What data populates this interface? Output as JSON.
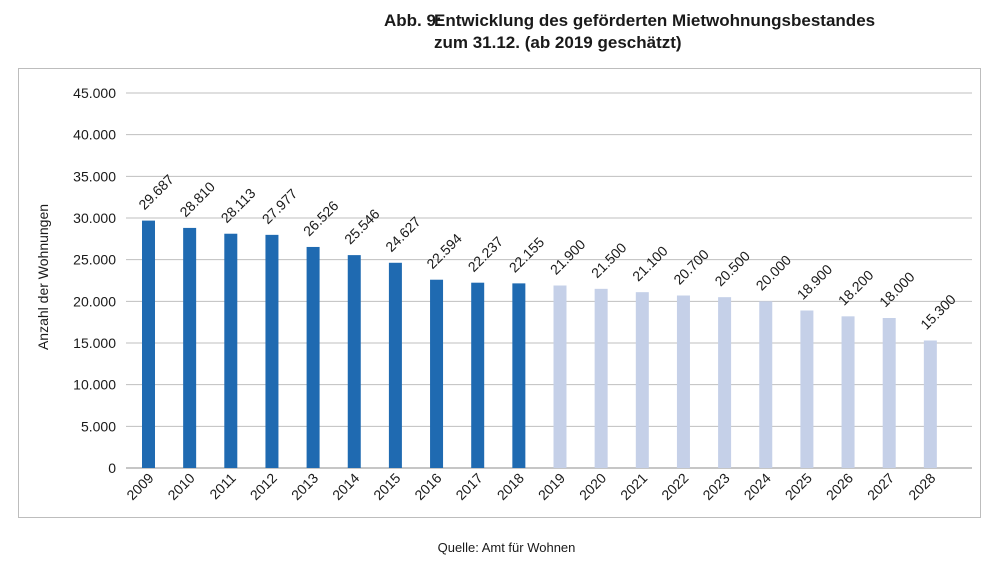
{
  "figure": {
    "label": "Abb. 9:",
    "title_line1": "Entwicklung des geförderten Mietwohnungsbestandes",
    "title_line2": "zum 31.12. (ab 2019 geschätzt)",
    "source": "Quelle: Amt für Wohnen"
  },
  "chart_data": {
    "type": "bar",
    "title": "Entwicklung des geförderten Mietwohnungsbestandes zum 31.12. (ab 2019 geschätzt)",
    "xlabel": "",
    "ylabel": "Anzahl der Wohnungen",
    "ylim": [
      0,
      45000
    ],
    "yticks": [
      0,
      5000,
      10000,
      15000,
      20000,
      25000,
      30000,
      35000,
      40000,
      45000
    ],
    "ytick_labels": [
      "0",
      "5.000",
      "10.000",
      "15.000",
      "20.000",
      "25.000",
      "30.000",
      "35.000",
      "40.000",
      "45.000"
    ],
    "grid": true,
    "legend": "none",
    "categories": [
      "2009",
      "2010",
      "2011",
      "2012",
      "2013",
      "2014",
      "2015",
      "2016",
      "2017",
      "2018",
      "2019",
      "2020",
      "2021",
      "2022",
      "2023",
      "2024",
      "2025",
      "2026",
      "2027",
      "2028"
    ],
    "values": [
      29687,
      28810,
      28113,
      27977,
      26526,
      25546,
      24627,
      22594,
      22237,
      22155,
      21900,
      21500,
      21100,
      20700,
      20500,
      20000,
      18900,
      18200,
      18000,
      15300
    ],
    "data_labels": [
      "29.687",
      "28.810",
      "28.113",
      "27.977",
      "26.526",
      "25.546",
      "24.627",
      "22.594",
      "22.237",
      "22.155",
      "21.900",
      "21.500",
      "21.100",
      "20.700",
      "20.500",
      "20.000",
      "18.900",
      "18.200",
      "18.000",
      "15.300"
    ],
    "estimated_from": "2019",
    "colors": {
      "actual": "#1f6ab1",
      "estimated": "#c5d0e8",
      "grid": "#bfbfbf",
      "axis": "#8c8c8c"
    }
  }
}
